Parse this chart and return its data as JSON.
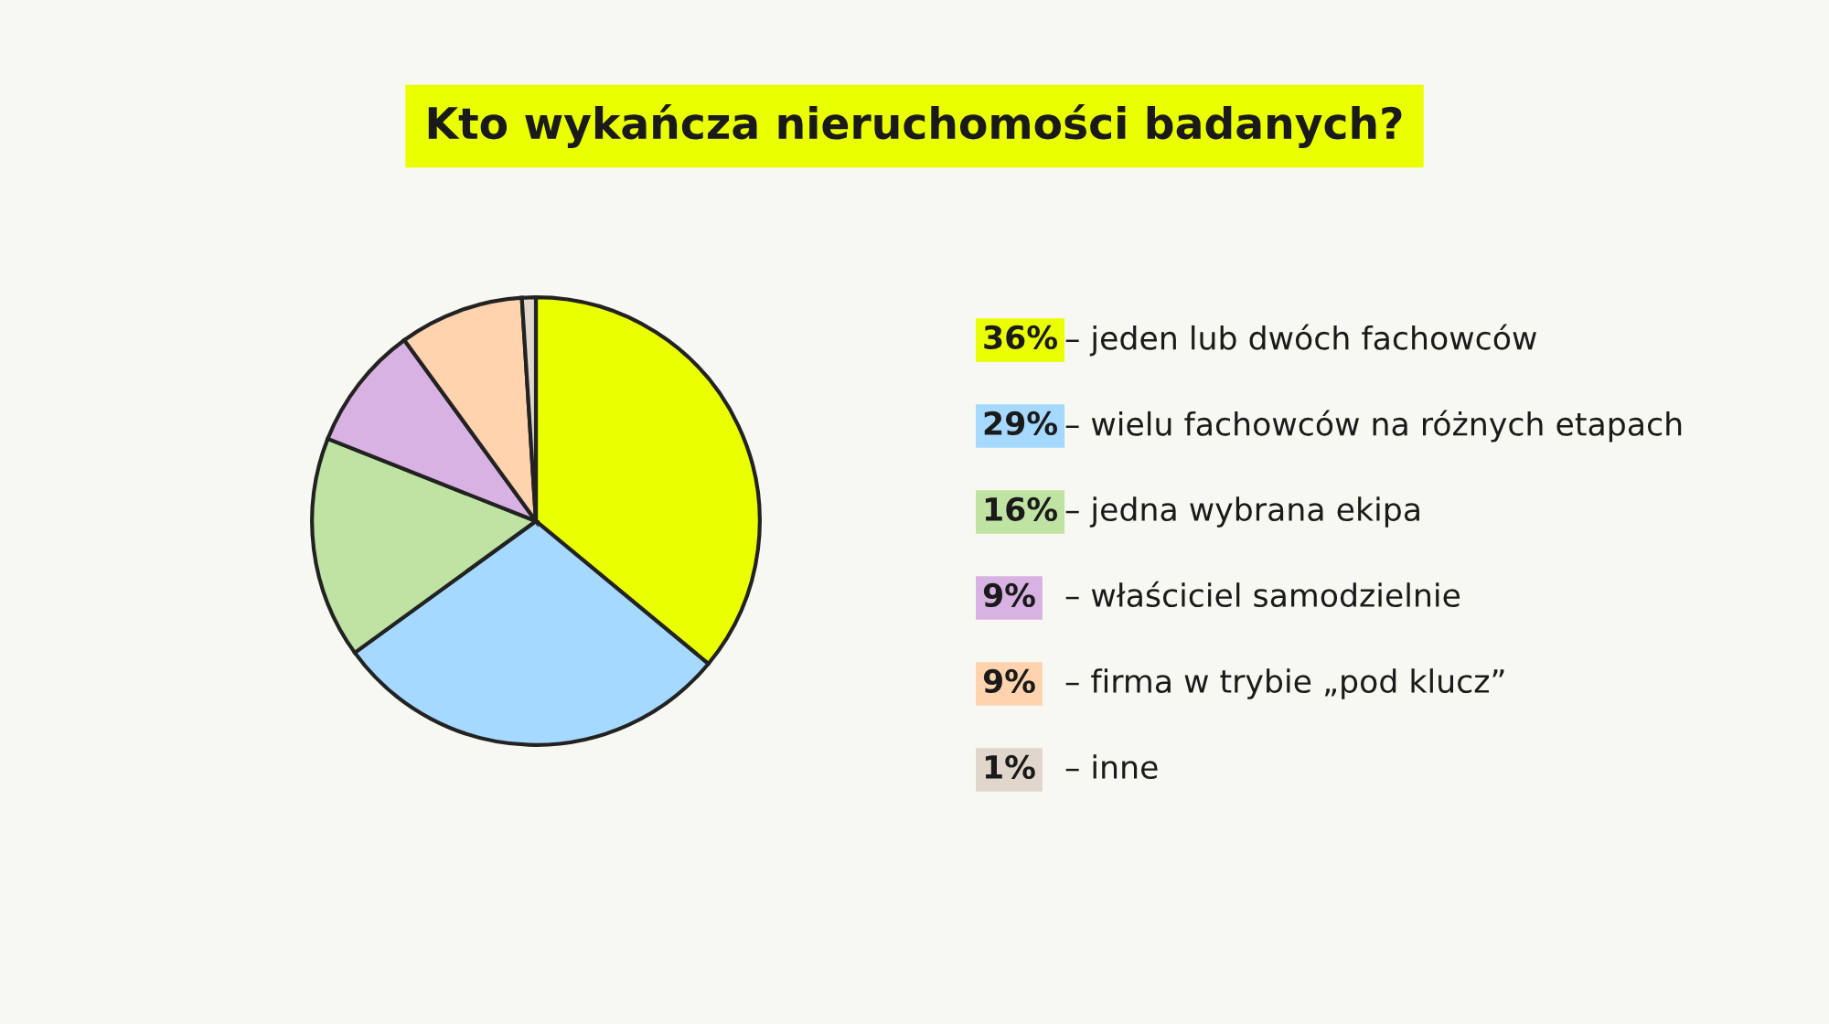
{
  "chart_data": {
    "type": "pie",
    "title": "Kto wykańcza nieruchomości badanych?",
    "categories": [
      "– jeden lub dwóch fachowców",
      "– wielu fachowców na różnych etapach",
      "– jedna wybrana ekipa",
      "– właściciel samodzielnie",
      "– firma w trybie „pod klucz”",
      "– inne"
    ],
    "values": [
      36,
      29,
      16,
      9,
      9,
      1
    ],
    "value_labels": [
      "36%",
      "29%",
      "16%",
      "9%",
      "9%",
      "1%"
    ],
    "colors": [
      "#eaff00",
      "#a6d9ff",
      "#bfe3a3",
      "#d8b2e2",
      "#ffd3ae",
      "#e0d6cc"
    ],
    "legend": "right"
  }
}
